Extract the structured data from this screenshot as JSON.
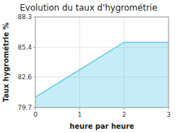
{
  "chart_data": {
    "type": "area",
    "title": "Evolution du taux d'hygrométrie",
    "xlabel": "heure par heure",
    "ylabel": "Taux hygrométrie %",
    "x": [
      0,
      2,
      3
    ],
    "series": [
      {
        "values": [
          80.7,
          85.9,
          85.9
        ],
        "color": "#5bc8e8"
      }
    ],
    "xlim": [
      0,
      3
    ],
    "ylim": [
      79.7,
      88.3
    ],
    "xticks": [
      0,
      1,
      2,
      3
    ],
    "yticks": [
      79.7,
      82.6,
      85.4,
      88.3
    ],
    "grid": true
  }
}
